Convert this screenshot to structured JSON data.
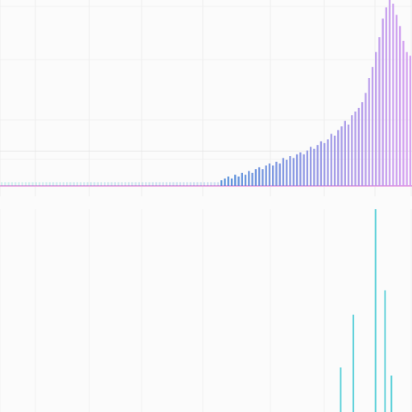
{
  "chart_data": [
    {
      "type": "bar",
      "title": "",
      "xlabel": "",
      "ylabel": "",
      "grid": true,
      "legend": "none",
      "ylim": [
        0,
        100
      ],
      "tick_labels": [
        "",
        "",
        "",
        "",
        "",
        "",
        ""
      ],
      "center_label": "",
      "colors": {
        "baseline": "#e9a7e2",
        "gradient_start": "#53d5d0",
        "gradient_mid": "#4f8ad8",
        "gradient_end": "#d49bf0"
      },
      "values": [
        2,
        2,
        2,
        2,
        2,
        2,
        2,
        2,
        2,
        2,
        2,
        2,
        2,
        2,
        2,
        2,
        2,
        2,
        2,
        2,
        2,
        2,
        2,
        2,
        2,
        2,
        2,
        2,
        2,
        2,
        2,
        2,
        2,
        2,
        2,
        2,
        2,
        2,
        2,
        2,
        2,
        2,
        2,
        2,
        2,
        2,
        2,
        2,
        2,
        2,
        2,
        2,
        2,
        2,
        2,
        2,
        2,
        2,
        2,
        2,
        2,
        2,
        2,
        2,
        3,
        4,
        5,
        4,
        6,
        5,
        7,
        6,
        8,
        7,
        9,
        10,
        9,
        11,
        12,
        11,
        13,
        12,
        15,
        14,
        16,
        15,
        17,
        18,
        17,
        19,
        21,
        20,
        22,
        24,
        23,
        25,
        28,
        27,
        30,
        32,
        35,
        33,
        38,
        40,
        42,
        45,
        50,
        58,
        64,
        72,
        80,
        90,
        96,
        100,
        98,
        92,
        86,
        78,
        72,
        70
      ]
    },
    {
      "type": "bar",
      "title": "",
      "xlabel": "",
      "ylabel": "",
      "grid": true,
      "legend": "none",
      "colors": {
        "bars": "#56cfd8"
      },
      "values": [
        0,
        0,
        0,
        0,
        0,
        0,
        0,
        0,
        0,
        0,
        0,
        0,
        0,
        0,
        0,
        0,
        0,
        0,
        0,
        0,
        0,
        0,
        0,
        0,
        0,
        0,
        0,
        0,
        0,
        0,
        0,
        0,
        0,
        0,
        0,
        0,
        0,
        0,
        0,
        0,
        0,
        0,
        0,
        0,
        0,
        0,
        0,
        0,
        0,
        0,
        0,
        0,
        0,
        0,
        0,
        0,
        0,
        0,
        0,
        0,
        0,
        0,
        0,
        0,
        0,
        0,
        0,
        0,
        0,
        0,
        0,
        0,
        0,
        0,
        0,
        0,
        0,
        0,
        0,
        0,
        0,
        0,
        0,
        0,
        0,
        0,
        0,
        0,
        0,
        0,
        0,
        0,
        0,
        0,
        0,
        0,
        0,
        0,
        0,
        0,
        0,
        0,
        0,
        0,
        0,
        0,
        0,
        22,
        0,
        0,
        0,
        48,
        0,
        0,
        0,
        0,
        0,
        0,
        100,
        0,
        0,
        60,
        0,
        18,
        0,
        0,
        0,
        0,
        0,
        0
      ]
    }
  ]
}
